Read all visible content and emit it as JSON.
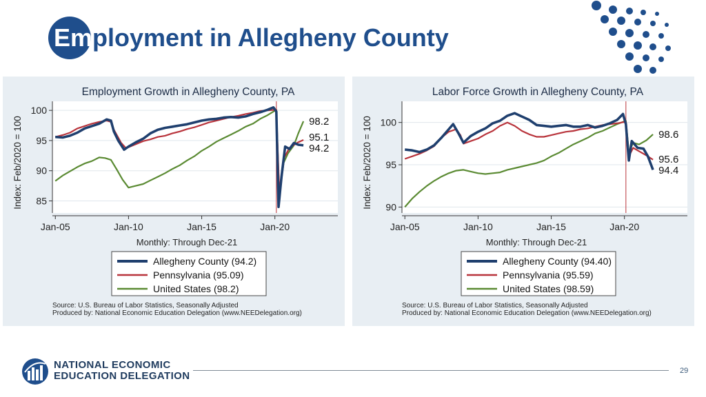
{
  "slide": {
    "title_prefix": "Em",
    "title_rest": "ployment in Allegheny County",
    "page_number": "29",
    "logo_line1": "NATIONAL ECONOMIC",
    "logo_line2": "EDUCATION DELEGATION",
    "brand_color": "#1f4e8c"
  },
  "chart_data": [
    {
      "type": "line",
      "title": "Employment Growth in Allegheny County, PA",
      "ylabel": "Index: Feb/2020 = 100",
      "xlabel": "Monthly: Through Dec-21",
      "ylim": [
        83,
        101.5
      ],
      "yticks": [
        85,
        90,
        95,
        100
      ],
      "xlim": [
        2004.8,
        2024.3
      ],
      "xticks": [
        {
          "x": 2005,
          "label": "Jan-05"
        },
        {
          "x": 2010,
          "label": "Jan-10"
        },
        {
          "x": 2015,
          "label": "Jan-15"
        },
        {
          "x": 2020,
          "label": "Jan-20"
        }
      ],
      "vline": 2020.1,
      "grid": true,
      "legend_position": "bottom",
      "series": [
        {
          "name": "Allegheny County (94.2)",
          "color": "#1f3f6e",
          "points": [
            [
              2005,
              95.6
            ],
            [
              2005.5,
              95.5
            ],
            [
              2006,
              95.8
            ],
            [
              2006.5,
              96.3
            ],
            [
              2007,
              97.0
            ],
            [
              2007.5,
              97.4
            ],
            [
              2008,
              97.8
            ],
            [
              2008.5,
              98.5
            ],
            [
              2008.8,
              98.3
            ],
            [
              2009,
              96.5
            ],
            [
              2009.3,
              95.0
            ],
            [
              2009.7,
              93.5
            ],
            [
              2010,
              94.0
            ],
            [
              2010.5,
              94.7
            ],
            [
              2011,
              95.3
            ],
            [
              2011.5,
              96.2
            ],
            [
              2012,
              96.8
            ],
            [
              2012.5,
              97.1
            ],
            [
              2013,
              97.3
            ],
            [
              2013.5,
              97.5
            ],
            [
              2014,
              97.7
            ],
            [
              2014.5,
              98.0
            ],
            [
              2015,
              98.3
            ],
            [
              2015.5,
              98.5
            ],
            [
              2016,
              98.6
            ],
            [
              2016.5,
              98.8
            ],
            [
              2017,
              98.9
            ],
            [
              2017.5,
              98.8
            ],
            [
              2018,
              99.0
            ],
            [
              2018.5,
              99.4
            ],
            [
              2019,
              99.7
            ],
            [
              2019.5,
              100.1
            ],
            [
              2019.9,
              100.5
            ],
            [
              2020.1,
              99.8
            ],
            [
              2020.25,
              84.0
            ],
            [
              2020.45,
              89.0
            ],
            [
              2020.7,
              94.0
            ],
            [
              2021,
              93.6
            ],
            [
              2021.3,
              94.6
            ],
            [
              2021.6,
              94.3
            ],
            [
              2021.95,
              94.2
            ]
          ]
        },
        {
          "name": "Pennsylvania (95.09)",
          "color": "#b8333b",
          "points": [
            [
              2005,
              95.6
            ],
            [
              2005.5,
              95.9
            ],
            [
              2006,
              96.3
            ],
            [
              2006.5,
              97.0
            ],
            [
              2007,
              97.4
            ],
            [
              2007.5,
              97.8
            ],
            [
              2008,
              98.1
            ],
            [
              2008.5,
              98.3
            ],
            [
              2008.8,
              98.1
            ],
            [
              2009,
              96.8
            ],
            [
              2009.5,
              94.6
            ],
            [
              2009.8,
              93.8
            ],
            [
              2010,
              93.9
            ],
            [
              2010.5,
              94.4
            ],
            [
              2011,
              94.9
            ],
            [
              2011.5,
              95.2
            ],
            [
              2012,
              95.6
            ],
            [
              2012.5,
              95.8
            ],
            [
              2013,
              96.2
            ],
            [
              2013.5,
              96.5
            ],
            [
              2014,
              96.9
            ],
            [
              2014.5,
              97.2
            ],
            [
              2015,
              97.6
            ],
            [
              2015.5,
              98.0
            ],
            [
              2016,
              98.3
            ],
            [
              2016.5,
              98.6
            ],
            [
              2017,
              98.9
            ],
            [
              2017.5,
              99.1
            ],
            [
              2018,
              99.4
            ],
            [
              2018.5,
              99.6
            ],
            [
              2019,
              99.9
            ],
            [
              2019.5,
              100.0
            ],
            [
              2020.1,
              100.1
            ],
            [
              2020.3,
              86.5
            ],
            [
              2020.6,
              92.0
            ],
            [
              2021,
              93.8
            ],
            [
              2021.5,
              94.6
            ],
            [
              2021.95,
              95.1
            ]
          ]
        },
        {
          "name": "United States (98.2)",
          "color": "#5a8a32",
          "points": [
            [
              2005,
              88.3
            ],
            [
              2005.5,
              89.2
            ],
            [
              2006,
              89.9
            ],
            [
              2006.5,
              90.6
            ],
            [
              2007,
              91.2
            ],
            [
              2007.5,
              91.6
            ],
            [
              2008,
              92.2
            ],
            [
              2008.4,
              92.1
            ],
            [
              2008.8,
              91.8
            ],
            [
              2009.2,
              90.2
            ],
            [
              2009.6,
              88.5
            ],
            [
              2010,
              87.2
            ],
            [
              2010.5,
              87.5
            ],
            [
              2011,
              87.8
            ],
            [
              2011.5,
              88.4
            ],
            [
              2012,
              89.0
            ],
            [
              2012.5,
              89.6
            ],
            [
              2013,
              90.3
            ],
            [
              2013.5,
              90.9
            ],
            [
              2014,
              91.7
            ],
            [
              2014.5,
              92.4
            ],
            [
              2015,
              93.3
            ],
            [
              2015.5,
              94.0
            ],
            [
              2016,
              94.8
            ],
            [
              2016.5,
              95.4
            ],
            [
              2017,
              96.0
            ],
            [
              2017.5,
              96.6
            ],
            [
              2018,
              97.3
            ],
            [
              2018.5,
              97.8
            ],
            [
              2019,
              98.6
            ],
            [
              2019.5,
              99.2
            ],
            [
              2020.1,
              100.1
            ],
            [
              2020.3,
              85.8
            ],
            [
              2020.6,
              91.3
            ],
            [
              2020.9,
              92.9
            ],
            [
              2021.3,
              94.2
            ],
            [
              2021.6,
              96.2
            ],
            [
              2021.95,
              98.2
            ]
          ]
        }
      ],
      "end_labels": [
        "98.2",
        "95.1",
        "94.2"
      ],
      "legend_entries": [
        "Allegheny County (94.2)",
        "Pennsylvania (95.09)",
        "United States (98.2)"
      ],
      "source_line1": "Source: U.S. Bureau of Labor Statistics, Seasonally Adjusted",
      "source_line2": "Produced by: National Economic Education Delegation (www.NEEDelegation.org)"
    },
    {
      "type": "line",
      "title": "Labor Force Growth in Allegheny County, PA",
      "ylabel": "Index: Feb/2020 = 100",
      "xlabel": "Monthly: Through Dec-21",
      "ylim": [
        89.3,
        102.5
      ],
      "yticks": [
        90,
        95,
        100
      ],
      "xlim": [
        2004.8,
        2024.3
      ],
      "xticks": [
        {
          "x": 2005,
          "label": "Jan-05"
        },
        {
          "x": 2010,
          "label": "Jan-10"
        },
        {
          "x": 2015,
          "label": "Jan-15"
        },
        {
          "x": 2020,
          "label": "Jan-20"
        }
      ],
      "vline": 2020.1,
      "grid": true,
      "legend_position": "bottom",
      "series": [
        {
          "name": "Allegheny County (94.40)",
          "color": "#1f3f6e",
          "points": [
            [
              2005,
              96.8
            ],
            [
              2005.5,
              96.7
            ],
            [
              2006,
              96.5
            ],
            [
              2006.5,
              96.8
            ],
            [
              2007,
              97.3
            ],
            [
              2007.5,
              98.2
            ],
            [
              2008,
              99.2
            ],
            [
              2008.3,
              99.8
            ],
            [
              2008.7,
              98.6
            ],
            [
              2009,
              97.6
            ],
            [
              2009.5,
              98.4
            ],
            [
              2010,
              98.9
            ],
            [
              2010.5,
              99.3
            ],
            [
              2011,
              99.9
            ],
            [
              2011.5,
              100.2
            ],
            [
              2012,
              100.8
            ],
            [
              2012.5,
              101.1
            ],
            [
              2013,
              100.7
            ],
            [
              2013.5,
              100.3
            ],
            [
              2014,
              99.7
            ],
            [
              2014.5,
              99.6
            ],
            [
              2015,
              99.5
            ],
            [
              2015.5,
              99.6
            ],
            [
              2016,
              99.7
            ],
            [
              2016.5,
              99.5
            ],
            [
              2017,
              99.5
            ],
            [
              2017.5,
              99.7
            ],
            [
              2018,
              99.4
            ],
            [
              2018.5,
              99.6
            ],
            [
              2019,
              99.9
            ],
            [
              2019.5,
              100.3
            ],
            [
              2019.9,
              101.0
            ],
            [
              2020.1,
              99.8
            ],
            [
              2020.3,
              95.5
            ],
            [
              2020.5,
              97.8
            ],
            [
              2020.9,
              97.0
            ],
            [
              2021.3,
              96.9
            ],
            [
              2021.6,
              96.0
            ],
            [
              2021.95,
              94.4
            ]
          ]
        },
        {
          "name": "Pennsylvania (95.59)",
          "color": "#b8333b",
          "points": [
            [
              2005,
              95.7
            ],
            [
              2005.5,
              96.0
            ],
            [
              2006,
              96.3
            ],
            [
              2006.5,
              96.7
            ],
            [
              2007,
              97.2
            ],
            [
              2007.5,
              98.2
            ],
            [
              2008,
              98.9
            ],
            [
              2008.5,
              99.2
            ],
            [
              2008.8,
              98.5
            ],
            [
              2009,
              97.5
            ],
            [
              2009.5,
              97.8
            ],
            [
              2010,
              98.1
            ],
            [
              2010.5,
              98.6
            ],
            [
              2011,
              99.0
            ],
            [
              2011.5,
              99.6
            ],
            [
              2012,
              100.0
            ],
            [
              2012.5,
              99.6
            ],
            [
              2013,
              99.0
            ],
            [
              2013.5,
              98.6
            ],
            [
              2014,
              98.3
            ],
            [
              2014.5,
              98.3
            ],
            [
              2015,
              98.5
            ],
            [
              2015.5,
              98.7
            ],
            [
              2016,
              98.9
            ],
            [
              2016.5,
              99.0
            ],
            [
              2017,
              99.2
            ],
            [
              2017.5,
              99.3
            ],
            [
              2018,
              99.5
            ],
            [
              2018.5,
              99.7
            ],
            [
              2019,
              99.8
            ],
            [
              2019.5,
              99.9
            ],
            [
              2020.1,
              100.1
            ],
            [
              2020.3,
              96.0
            ],
            [
              2020.6,
              97.0
            ],
            [
              2021,
              96.6
            ],
            [
              2021.5,
              96.1
            ],
            [
              2021.95,
              95.6
            ]
          ]
        },
        {
          "name": "United States (98.59)",
          "color": "#5a8a32",
          "points": [
            [
              2005,
              90.0
            ],
            [
              2005.5,
              91.0
            ],
            [
              2006,
              91.8
            ],
            [
              2006.5,
              92.5
            ],
            [
              2007,
              93.1
            ],
            [
              2007.5,
              93.6
            ],
            [
              2008,
              94.0
            ],
            [
              2008.5,
              94.3
            ],
            [
              2009,
              94.4
            ],
            [
              2009.5,
              94.2
            ],
            [
              2010,
              94.0
            ],
            [
              2010.5,
              93.9
            ],
            [
              2011,
              94.0
            ],
            [
              2011.5,
              94.1
            ],
            [
              2012,
              94.4
            ],
            [
              2012.5,
              94.6
            ],
            [
              2013,
              94.8
            ],
            [
              2013.5,
              95.0
            ],
            [
              2014,
              95.2
            ],
            [
              2014.5,
              95.5
            ],
            [
              2015,
              96.0
            ],
            [
              2015.5,
              96.4
            ],
            [
              2016,
              96.9
            ],
            [
              2016.5,
              97.4
            ],
            [
              2017,
              97.8
            ],
            [
              2017.5,
              98.2
            ],
            [
              2018,
              98.7
            ],
            [
              2018.5,
              99.0
            ],
            [
              2019,
              99.4
            ],
            [
              2019.5,
              99.8
            ],
            [
              2020.1,
              100.2
            ],
            [
              2020.3,
              96.5
            ],
            [
              2020.6,
              97.6
            ],
            [
              2021,
              97.4
            ],
            [
              2021.5,
              97.9
            ],
            [
              2021.95,
              98.6
            ]
          ]
        }
      ],
      "end_labels": [
        "98.6",
        "95.6",
        "94.4"
      ],
      "legend_entries": [
        "Allegheny County (94.40)",
        "Pennsylvania (95.59)",
        "United States (98.59)"
      ],
      "source_line1": "Source: U.S. Bureau of Labor Statistics, Seasonally Adjusted",
      "source_line2": "Produced by: National Economic Education Delegation (www.NEEDelegation.org)"
    }
  ]
}
